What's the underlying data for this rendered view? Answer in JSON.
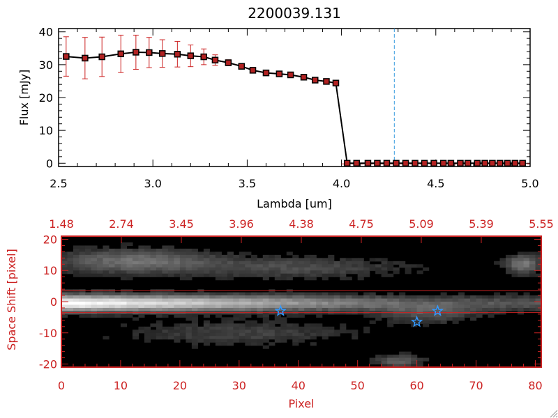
{
  "chart_data": [
    {
      "type": "line",
      "title": "2200039.131",
      "xlabel": "Lambda [um]",
      "ylabel": "Flux [mJy]",
      "xlim": [
        2.5,
        5.0
      ],
      "ylim": [
        -1,
        41
      ],
      "xticks": [
        "2.5",
        "3.0",
        "3.5",
        "4.0",
        "4.5",
        "5.0"
      ],
      "yticks": [
        "0",
        "10",
        "20",
        "30",
        "40"
      ],
      "grid": false,
      "marker_line_x": 4.28,
      "series": [
        {
          "x": [
            2.54,
            2.64,
            2.73,
            2.83,
            2.91,
            2.98,
            3.05,
            3.13,
            3.2,
            3.27,
            3.33,
            3.4,
            3.47,
            3.53,
            3.6,
            3.67,
            3.73,
            3.8,
            3.86,
            3.92,
            3.97,
            4.03,
            4.08,
            4.14,
            4.19,
            4.24,
            4.29,
            4.34,
            4.39,
            4.44,
            4.49,
            4.54,
            4.58,
            4.63,
            4.67,
            4.72,
            4.76,
            4.8,
            4.84,
            4.88,
            4.92,
            4.96
          ],
          "y": [
            32.5,
            32.0,
            32.4,
            33.3,
            33.8,
            33.7,
            33.4,
            33.2,
            32.7,
            32.4,
            31.4,
            30.6,
            29.5,
            28.3,
            27.5,
            27.2,
            26.9,
            26.2,
            25.3,
            24.9,
            24.4,
            0,
            0,
            0,
            0,
            0,
            0,
            0,
            0,
            0,
            0,
            0,
            0,
            0,
            0,
            0,
            0,
            0,
            0,
            0,
            0,
            0
          ],
          "err": [
            6.0,
            6.3,
            6.0,
            5.7,
            5.2,
            4.6,
            4.2,
            3.9,
            3.3,
            2.4,
            1.6,
            0.9,
            0.6,
            0.5,
            0.4,
            0.4,
            0.4,
            0.4,
            0.4,
            0.4,
            0.4,
            0,
            0,
            0,
            0,
            0,
            0,
            0,
            0,
            0,
            0,
            0,
            0,
            0,
            0,
            0,
            0,
            0,
            0,
            0,
            0,
            0
          ]
        }
      ],
      "colors": {
        "line": "#000000",
        "marker": "#b22222",
        "error": "#cc2222",
        "marker_line": "#3399dd"
      }
    },
    {
      "type": "heatmap",
      "xlabel": "Pixel",
      "ylabel": "Space Shift [pixel]",
      "xlim": [
        0,
        81
      ],
      "ylim": [
        -21,
        21
      ],
      "xticks": [
        "0",
        "10",
        "20",
        "30",
        "40",
        "50",
        "60",
        "70",
        "80"
      ],
      "yticks": [
        "-20",
        "-10",
        "0",
        "10",
        "20"
      ],
      "top_ticks": [
        "1.48",
        "2.74",
        "3.45",
        "3.96",
        "4.38",
        "4.75",
        "5.09",
        "5.39",
        "5.55"
      ],
      "hlines": [
        3.5,
        -3.5
      ],
      "stars": [
        {
          "x": 37,
          "y": -3
        },
        {
          "x": 60,
          "y": -6.5
        },
        {
          "x": 63.5,
          "y": -3
        }
      ],
      "colors": {
        "axis": "#cc2222",
        "star": "#3399ff",
        "hline": "#cc2222"
      }
    }
  ]
}
